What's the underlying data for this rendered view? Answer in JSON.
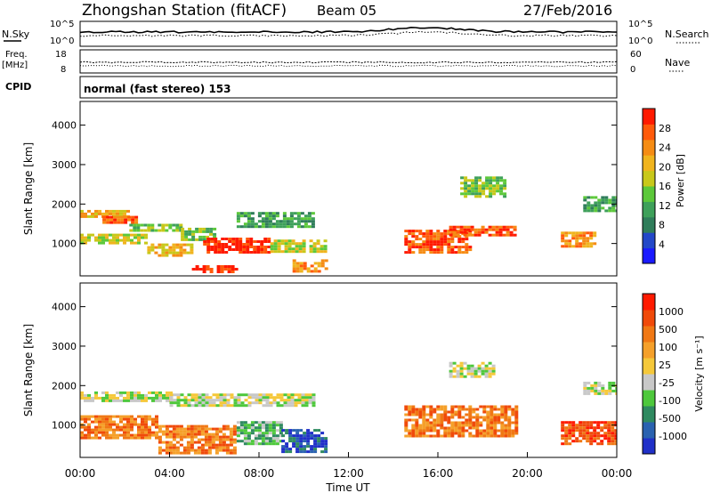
{
  "header": {
    "title": "Zhongshan Station (fitACF)",
    "beam": "Beam 05",
    "date": "27/Feb/2016"
  },
  "strips": {
    "nsky_label": "N.Sky",
    "nsky_top": "10^5",
    "nsky_bottom": "10^0",
    "nsearch_label": "N.Search",
    "freq_label_1": "Freq.",
    "freq_label_2": "[MHz]",
    "freq_top": "18",
    "freq_bottom": "8",
    "nave_top": "60",
    "nave_bottom": "0",
    "nave_label": "Nave",
    "cpid_label": "CPID",
    "cpid_text": "normal (fast stereo) 153"
  },
  "chart_data": [
    {
      "type": "heatmap",
      "panel": "power",
      "ylabel": "Slant Range [km]",
      "ylim": [
        180,
        4600
      ],
      "yticks": [
        "1000",
        "2000",
        "3000",
        "4000"
      ],
      "xlim_hours": [
        0,
        24
      ],
      "colorbar": {
        "label": "Power [dB]",
        "ticks": [
          "4",
          "8",
          "12",
          "16",
          "20",
          "24",
          "28"
        ],
        "colors": [
          "#1a1aff",
          "#2348c8",
          "#2f7d5a",
          "#3ea05a",
          "#5cc83a",
          "#c8c81a",
          "#f0b41e",
          "#f58c14",
          "#ff5a0a",
          "#ff1a00"
        ]
      },
      "blobs": [
        {
          "t": [
            0.0,
            2.2
          ],
          "r": [
            1650,
            1850
          ],
          "level": 6
        },
        {
          "t": [
            1.0,
            2.5
          ],
          "r": [
            1500,
            1700
          ],
          "level": 8
        },
        {
          "t": [
            0.0,
            3.0
          ],
          "r": [
            1000,
            1250
          ],
          "level": 5
        },
        {
          "t": [
            2.2,
            4.5
          ],
          "r": [
            1300,
            1500
          ],
          "level": 4
        },
        {
          "t": [
            3.0,
            5.0
          ],
          "r": [
            700,
            1000
          ],
          "level": 6
        },
        {
          "t": [
            4.5,
            6.0
          ],
          "r": [
            1100,
            1400
          ],
          "level": 4
        },
        {
          "t": [
            5.5,
            8.5
          ],
          "r": [
            800,
            1150
          ],
          "level": 9
        },
        {
          "t": [
            5.0,
            7.0
          ],
          "r": [
            250,
            450
          ],
          "level": 9
        },
        {
          "t": [
            7.0,
            10.5
          ],
          "r": [
            1400,
            1800
          ],
          "level": 3
        },
        {
          "t": [
            8.5,
            11.0
          ],
          "r": [
            800,
            1100
          ],
          "level": 5
        },
        {
          "t": [
            9.5,
            11.0
          ],
          "r": [
            300,
            600
          ],
          "level": 7
        },
        {
          "t": [
            14.5,
            17.5
          ],
          "r": [
            800,
            1350
          ],
          "level": 8
        },
        {
          "t": [
            16.5,
            19.5
          ],
          "r": [
            1200,
            1450
          ],
          "level": 8
        },
        {
          "t": [
            17.0,
            19.0
          ],
          "r": [
            2200,
            2700
          ],
          "level": 4
        },
        {
          "t": [
            21.5,
            23.0
          ],
          "r": [
            900,
            1300
          ],
          "level": 7
        },
        {
          "t": [
            22.5,
            24.0
          ],
          "r": [
            1800,
            2200
          ],
          "level": 3
        }
      ]
    },
    {
      "type": "heatmap",
      "panel": "velocity",
      "ylabel": "Slant Range [km]",
      "ylim": [
        180,
        4600
      ],
      "yticks": [
        "1000",
        "2000",
        "3000",
        "4000"
      ],
      "xlim_hours": [
        0,
        24
      ],
      "xticks": [
        "00:00",
        "04:00",
        "08:00",
        "12:00",
        "16:00",
        "20:00",
        "00:00"
      ],
      "xlabel": "Time UT",
      "colorbar": {
        "label": "Velocity [m s⁻¹]",
        "ticks": [
          "1000",
          "500",
          "100",
          "25",
          "-25",
          "-100",
          "-500",
          "-1000"
        ],
        "colors": [
          "#2030c8",
          "#2a62b0",
          "#2f8a60",
          "#4ec83c",
          "#c8c8c8",
          "#f5c83a",
          "#f5a02a",
          "#f07814",
          "#f04a0a",
          "#ff1a00"
        ]
      },
      "blobs": [
        {
          "t": [
            0.0,
            4.0
          ],
          "r": [
            1600,
            1850
          ],
          "level": 4
        },
        {
          "t": [
            4.0,
            10.5
          ],
          "r": [
            1500,
            1800
          ],
          "level": 4
        },
        {
          "t": [
            0.0,
            3.5
          ],
          "r": [
            700,
            1250
          ],
          "level": 7
        },
        {
          "t": [
            3.5,
            7.0
          ],
          "r": [
            300,
            1000
          ],
          "level": 7
        },
        {
          "t": [
            7.0,
            9.0
          ],
          "r": [
            500,
            1100
          ],
          "level": 3
        },
        {
          "t": [
            9.0,
            11.0
          ],
          "r": [
            300,
            900
          ],
          "level": 1
        },
        {
          "t": [
            14.5,
            19.5
          ],
          "r": [
            700,
            1500
          ],
          "level": 7
        },
        {
          "t": [
            16.5,
            18.5
          ],
          "r": [
            2200,
            2600
          ],
          "level": 4
        },
        {
          "t": [
            21.5,
            24.0
          ],
          "r": [
            500,
            1100
          ],
          "level": 8
        },
        {
          "t": [
            22.5,
            24.0
          ],
          "r": [
            1800,
            2100
          ],
          "level": 4
        }
      ]
    }
  ]
}
